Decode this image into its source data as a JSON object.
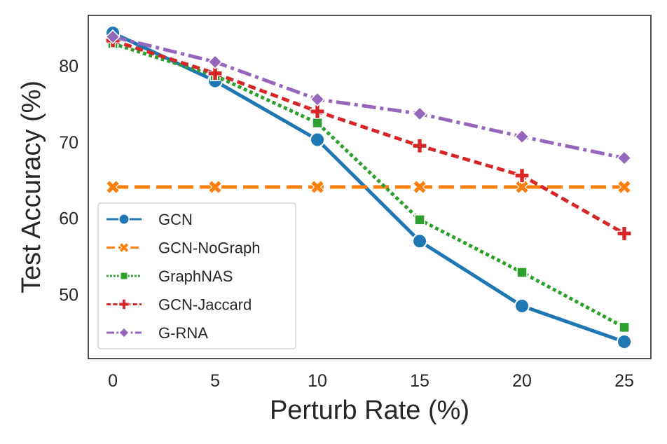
{
  "chart_data": {
    "type": "line",
    "title": "",
    "xlabel": "Perturb Rate (%)",
    "ylabel": "Test Accuracy (%)",
    "x": [
      0,
      5,
      10,
      15,
      20,
      25
    ],
    "xticks": [
      "0",
      "5",
      "10",
      "15",
      "20",
      "25"
    ],
    "yticks": [
      50,
      60,
      70,
      80
    ],
    "ytick_labels": [
      "50",
      "60",
      "70",
      "80"
    ],
    "xlim": [
      -1.2,
      26.3
    ],
    "ylim": [
      41.6,
      86.6
    ],
    "grid": false,
    "legend_position": "lower-left",
    "series": [
      {
        "name": "GCN",
        "values": [
          84.3,
          78.0,
          70.3,
          57.0,
          48.5,
          43.8
        ],
        "color": "#1f77b4",
        "marker": "circle",
        "dash": "solid",
        "width": 5
      },
      {
        "name": "GCN-NoGraph",
        "values": [
          64.1,
          64.1,
          64.1,
          64.1,
          64.1,
          64.1
        ],
        "color": "#ff7f0e",
        "marker": "x",
        "dash": "dashed",
        "width": 5
      },
      {
        "name": "GraphNAS",
        "values": [
          82.9,
          78.7,
          72.5,
          59.8,
          52.9,
          45.7
        ],
        "color": "#2ca02c",
        "marker": "square",
        "dash": "dotted",
        "width": 5
      },
      {
        "name": "GCN-Jaccard",
        "values": [
          83.3,
          79.0,
          74.0,
          69.5,
          65.6,
          58.0
        ],
        "color": "#d62728",
        "marker": "plus",
        "dash": "densedash",
        "width": 5
      },
      {
        "name": "G-RNA",
        "values": [
          83.8,
          80.5,
          75.6,
          73.7,
          70.7,
          67.9
        ],
        "color": "#9467bd",
        "marker": "diamond",
        "dash": "dashdot",
        "width": 5
      }
    ]
  }
}
